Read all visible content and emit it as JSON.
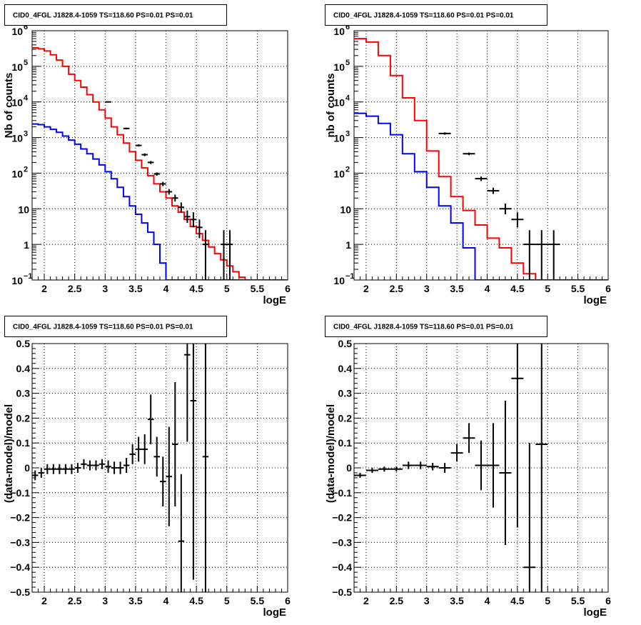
{
  "chart_data": [
    {
      "type": "histogram",
      "title": "CID0_4FGL J1828.4-1059 TS=118.60 PS=0.01 PS=0.01",
      "xlabel": "logE",
      "ylabel": "Nb of counts",
      "xlim": [
        1.8,
        6
      ],
      "ylim": [
        0.1,
        1000000
      ],
      "yscale": "log",
      "grid": true,
      "xticks": [
        "2",
        "2.5",
        "3",
        "3.5",
        "4",
        "4.5",
        "5",
        "5.5",
        "6"
      ],
      "yticks": [
        {
          "base": "10",
          "exp": "−1"
        },
        {
          "base": "1",
          "exp": ""
        },
        {
          "base": "10",
          "exp": ""
        },
        {
          "base": "10",
          "exp": "2"
        },
        {
          "base": "10",
          "exp": "3"
        },
        {
          "base": "10",
          "exp": "4"
        },
        {
          "base": "10",
          "exp": "5"
        },
        {
          "base": "10",
          "exp": "6"
        }
      ],
      "binning": {
        "start": 1.8,
        "width": 0.1
      },
      "series": [
        {
          "color": "#ff0000",
          "style": "step",
          "values": [
            330000,
            310000,
            270000,
            210000,
            150000,
            100000,
            60000,
            40000,
            26000,
            16000,
            10000,
            6000,
            3500,
            2000,
            1200,
            700,
            400,
            230,
            140,
            85,
            50,
            30,
            20,
            12,
            8,
            5,
            3.2,
            2,
            1.3,
            0.85,
            0.55,
            0.37,
            0.25,
            0.17,
            0.12,
            0.1,
            0.1,
            0.1,
            0.1,
            0.1,
            0.1,
            0.1
          ]
        },
        {
          "color": "#0000ff",
          "style": "step",
          "values": [
            2400,
            2300,
            2000,
            1700,
            1400,
            1100,
            850,
            650,
            480,
            350,
            250,
            170,
            110,
            70,
            40,
            22,
            12,
            7,
            4,
            2.2,
            1,
            0.3,
            0.1,
            0.1,
            0.1,
            0.1,
            0.1,
            0.1,
            0.1,
            0.1,
            0.1,
            0.1,
            0.1,
            0.1,
            0.1,
            0.1,
            0.1,
            0.1,
            0.1,
            0.1,
            0.1,
            0.1
          ]
        }
      ],
      "data_points": [
        {
          "x": 3.05,
          "y": 10000,
          "ylo": 9800,
          "yhi": 10200
        },
        {
          "x": 3.35,
          "y": 1800,
          "ylo": 1700,
          "yhi": 1900
        },
        {
          "x": 3.55,
          "y": 600,
          "ylo": 560,
          "yhi": 640
        },
        {
          "x": 3.65,
          "y": 330,
          "ylo": 300,
          "yhi": 360
        },
        {
          "x": 3.75,
          "y": 200,
          "ylo": 180,
          "yhi": 220
        },
        {
          "x": 3.85,
          "y": 95,
          "ylo": 85,
          "yhi": 105
        },
        {
          "x": 3.95,
          "y": 50,
          "ylo": 43,
          "yhi": 57
        },
        {
          "x": 4.05,
          "y": 30,
          "ylo": 25,
          "yhi": 36
        },
        {
          "x": 4.15,
          "y": 20,
          "ylo": 16,
          "yhi": 25
        },
        {
          "x": 4.25,
          "y": 11,
          "ylo": 8,
          "yhi": 15
        },
        {
          "x": 4.35,
          "y": 6,
          "ylo": 4,
          "yhi": 9
        },
        {
          "x": 4.45,
          "y": 5,
          "ylo": 3,
          "yhi": 8
        },
        {
          "x": 4.55,
          "y": 3,
          "ylo": 1.5,
          "yhi": 5
        },
        {
          "x": 4.65,
          "y": 1,
          "ylo": 0.1,
          "yhi": 2.5
        },
        {
          "x": 4.95,
          "y": 1,
          "ylo": 0.1,
          "yhi": 2.5
        },
        {
          "x": 5.05,
          "y": 1,
          "ylo": 0.1,
          "yhi": 2.5
        }
      ]
    },
    {
      "type": "histogram",
      "title": "CID0_4FGL J1828.4-1059 TS=118.60 PS=0.01 PS=0.01",
      "xlabel": "logE",
      "ylabel": "nb of counts",
      "xlim": [
        1.8,
        6
      ],
      "ylim": [
        0.1,
        1000000
      ],
      "yscale": "log",
      "grid": true,
      "xticks": [
        "2",
        "2.5",
        "3",
        "3.5",
        "4",
        "4.5",
        "5",
        "5.5",
        "6"
      ],
      "yticks": [
        {
          "base": "10",
          "exp": "−1"
        },
        {
          "base": "1",
          "exp": ""
        },
        {
          "base": "10",
          "exp": ""
        },
        {
          "base": "10",
          "exp": "2"
        },
        {
          "base": "10",
          "exp": "3"
        },
        {
          "base": "10",
          "exp": "4"
        },
        {
          "base": "10",
          "exp": "5"
        },
        {
          "base": "10",
          "exp": "6"
        }
      ],
      "binning": {
        "start": 1.8,
        "width": 0.2
      },
      "series": [
        {
          "color": "#ff0000",
          "style": "step",
          "values": [
            600000,
            480000,
            200000,
            55000,
            13000,
            3000,
            420,
            80,
            22,
            9,
            3.5,
            1.5,
            0.8,
            0.3,
            0.15,
            0.1,
            0.1,
            0.1,
            0.1,
            0.1,
            0.1
          ]
        },
        {
          "color": "#0000ff",
          "style": "step",
          "values": [
            4800,
            4000,
            2500,
            1200,
            350,
            110,
            40,
            12,
            4,
            0.8,
            0.1,
            0.1,
            0.1,
            0.1,
            0.1,
            0.1,
            0.1,
            0.1,
            0.1,
            0.1,
            0.1
          ]
        }
      ],
      "data_points": [
        {
          "x": 3.3,
          "y": 1300,
          "ylo": 1200,
          "yhi": 1400
        },
        {
          "x": 3.7,
          "y": 350,
          "ylo": 320,
          "yhi": 380
        },
        {
          "x": 3.9,
          "y": 70,
          "ylo": 60,
          "yhi": 80
        },
        {
          "x": 4.1,
          "y": 32,
          "ylo": 26,
          "yhi": 39
        },
        {
          "x": 4.3,
          "y": 10,
          "ylo": 7,
          "yhi": 14
        },
        {
          "x": 4.5,
          "y": 5,
          "ylo": 3,
          "yhi": 8
        },
        {
          "x": 4.7,
          "y": 1,
          "ylo": 0.1,
          "yhi": 2.5
        },
        {
          "x": 4.9,
          "y": 1,
          "ylo": 0.1,
          "yhi": 2.5
        },
        {
          "x": 5.1,
          "y": 1,
          "ylo": 0.1,
          "yhi": 2.5
        }
      ]
    },
    {
      "type": "scatter",
      "title": "CID0_4FGL J1828.4-1059 TS=118.60 PS=0.01 PS=0.01",
      "xlabel": "logE",
      "ylabel": "(data-model)/model",
      "xlim": [
        1.8,
        6
      ],
      "ylim": [
        -0.5,
        0.5
      ],
      "yscale": "linear",
      "grid": true,
      "xticks": [
        "2",
        "2.5",
        "3",
        "3.5",
        "4",
        "4.5",
        "5",
        "5.5",
        "6"
      ],
      "yticks": [
        "−0.5",
        "−0.4",
        "−0.3",
        "−0.2",
        "−0.1",
        "0",
        "0.1",
        "0.2",
        "0.3",
        "0.4",
        "0.5"
      ],
      "xerr": 0.05,
      "data_points": [
        {
          "x": 1.85,
          "y": -0.03,
          "err": 0.02
        },
        {
          "x": 1.95,
          "y": -0.02,
          "err": 0.02
        },
        {
          "x": 2.05,
          "y": -0.005,
          "err": 0.02
        },
        {
          "x": 2.15,
          "y": -0.005,
          "err": 0.02
        },
        {
          "x": 2.25,
          "y": -0.005,
          "err": 0.02
        },
        {
          "x": 2.35,
          "y": -0.005,
          "err": 0.02
        },
        {
          "x": 2.45,
          "y": -0.005,
          "err": 0.02
        },
        {
          "x": 2.55,
          "y": 0.0,
          "err": 0.02
        },
        {
          "x": 2.65,
          "y": 0.015,
          "err": 0.02
        },
        {
          "x": 2.75,
          "y": 0.01,
          "err": 0.02
        },
        {
          "x": 2.85,
          "y": 0.01,
          "err": 0.02
        },
        {
          "x": 2.95,
          "y": 0.015,
          "err": 0.02
        },
        {
          "x": 3.05,
          "y": 0.005,
          "err": 0.025
        },
        {
          "x": 3.15,
          "y": 0.0,
          "err": 0.025
        },
        {
          "x": 3.25,
          "y": 0.0,
          "err": 0.025
        },
        {
          "x": 3.35,
          "y": 0.01,
          "err": 0.03
        },
        {
          "x": 3.45,
          "y": 0.055,
          "err": 0.04
        },
        {
          "x": 3.55,
          "y": 0.075,
          "err": 0.05
        },
        {
          "x": 3.65,
          "y": 0.075,
          "err": 0.06
        },
        {
          "x": 3.75,
          "y": 0.195,
          "err": 0.1
        },
        {
          "x": 3.85,
          "y": 0.045,
          "err": 0.08
        },
        {
          "x": 3.95,
          "y": -0.055,
          "err": 0.1
        },
        {
          "x": 4.05,
          "y": -0.035,
          "err": 0.2
        },
        {
          "x": 4.15,
          "y": 0.095,
          "err": 0.25
        },
        {
          "x": 4.25,
          "y": -0.295,
          "err": 0.27
        },
        {
          "x": 4.35,
          "y": 0.455,
          "err": 0.35
        },
        {
          "x": 4.45,
          "y": 0.27,
          "err": 0.72
        },
        {
          "x": 4.65,
          "y": 0.045,
          "err": 1.0
        }
      ]
    },
    {
      "type": "scatter",
      "title": "CID0_4FGL J1828.4-1059 TS=118.60 PS=0.01 PS=0.01",
      "xlabel": "logE",
      "ylabel": "(data-model)/model",
      "xlim": [
        1.8,
        6
      ],
      "ylim": [
        -0.5,
        0.5
      ],
      "yscale": "linear",
      "grid": true,
      "xticks": [
        "2",
        "2.5",
        "3",
        "3.5",
        "4",
        "4.5",
        "5",
        "5.5",
        "6"
      ],
      "yticks": [
        "−0.5",
        "−0.4",
        "−0.3",
        "−0.2",
        "−0.1",
        "0",
        "0.1",
        "0.2",
        "0.3",
        "0.4",
        "0.5"
      ],
      "xerr": 0.1,
      "data_points": [
        {
          "x": 1.9,
          "y": -0.03,
          "err": 0.01
        },
        {
          "x": 2.1,
          "y": -0.01,
          "err": 0.01
        },
        {
          "x": 2.3,
          "y": -0.005,
          "err": 0.01
        },
        {
          "x": 2.5,
          "y": -0.005,
          "err": 0.01
        },
        {
          "x": 2.7,
          "y": 0.01,
          "err": 0.015
        },
        {
          "x": 2.9,
          "y": 0.01,
          "err": 0.015
        },
        {
          "x": 3.1,
          "y": 0.005,
          "err": 0.015
        },
        {
          "x": 3.3,
          "y": 0.0,
          "err": 0.02
        },
        {
          "x": 3.5,
          "y": 0.06,
          "err": 0.035
        },
        {
          "x": 3.7,
          "y": 0.12,
          "err": 0.06
        },
        {
          "x": 3.9,
          "y": 0.01,
          "err": 0.1
        },
        {
          "x": 4.1,
          "y": 0.01,
          "err": 0.17
        },
        {
          "x": 4.3,
          "y": -0.02,
          "err": 0.29
        },
        {
          "x": 4.5,
          "y": 0.36,
          "err": 0.6
        },
        {
          "x": 4.7,
          "y": -0.4,
          "err": 0.5
        },
        {
          "x": 4.9,
          "y": 0.095,
          "err": 0.8
        }
      ]
    }
  ]
}
